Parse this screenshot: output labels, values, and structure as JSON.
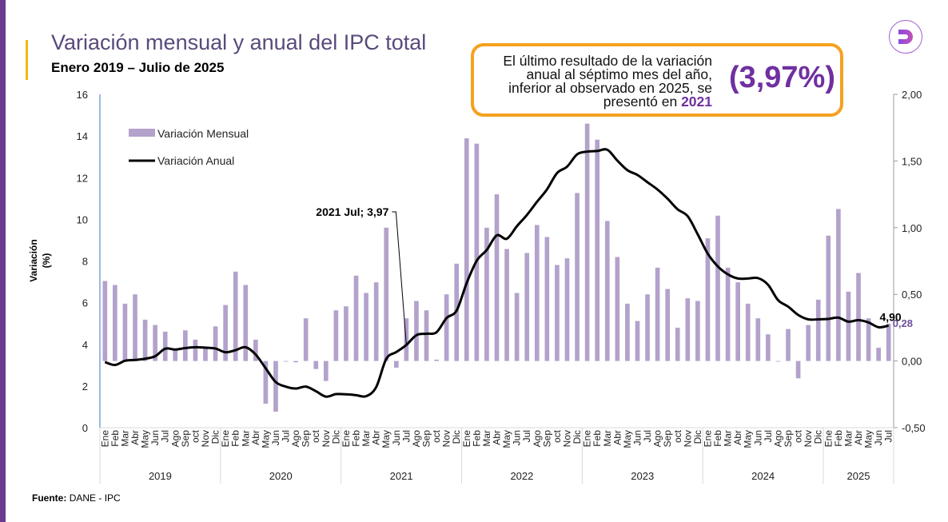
{
  "header": {
    "title": "Variación mensual y anual del IPC total",
    "subtitle": "Enero 2019 – Julio de 2025"
  },
  "logo": {
    "icon": "dane-d-logo-icon",
    "letter": "D",
    "color": "#9b4fd6"
  },
  "callout": {
    "line1": "El último resultado de la variación",
    "line2": "anual al séptimo mes del año,",
    "line3": "inferior al observado en 2025, se",
    "line4_prefix": "presentó en ",
    "line4_highlight": "2021",
    "big_value": "(3,97%)",
    "border_color": "#f5a11f",
    "accent_color": "#7030a0"
  },
  "footer": {
    "label": "Fuente:",
    "value": "DANE - IPC"
  },
  "chart_data": {
    "type": "bar+line",
    "title": "Variación mensual y anual del IPC total",
    "subtitle": "Enero 2019 – Julio de 2025",
    "ylabel": "Variación (%)",
    "ylabel_line1": "Variación",
    "ylabel_line2": "(%)",
    "y_left": {
      "range": [
        0,
        16
      ],
      "ticks": [
        "0",
        "2",
        "4",
        "6",
        "8",
        "10",
        "12",
        "14",
        "16"
      ],
      "series": "Variación Anual"
    },
    "y_right": {
      "range": [
        -0.5,
        2.0
      ],
      "ticks": [
        "-0,50",
        "0,00",
        "0,50",
        "1,00",
        "1,50",
        "2,00"
      ],
      "series": "Variación Mensual"
    },
    "grid": false,
    "legend": {
      "position": "top-left",
      "entries": [
        {
          "name": "Variación Mensual",
          "type": "bar",
          "color": "#b3a2cb"
        },
        {
          "name": "Variación Anual",
          "type": "line",
          "color": "#000000"
        }
      ]
    },
    "years": [
      "2019",
      "2020",
      "2021",
      "2022",
      "2023",
      "2024",
      "2025"
    ],
    "months_per_year": [
      12,
      12,
      12,
      12,
      12,
      12,
      7
    ],
    "month_labels": [
      "Ene",
      "Feb",
      "Mar",
      "Abr",
      "May",
      "Jun",
      "Jul",
      "Ago",
      "Sep",
      "oct",
      "Nov",
      "Dic"
    ],
    "series": [
      {
        "name": "Variación Mensual",
        "axis": "right",
        "type": "bar",
        "color": "#b3a2cb",
        "values": [
          0.6,
          0.57,
          0.43,
          0.5,
          0.31,
          0.27,
          0.22,
          0.09,
          0.23,
          0.16,
          0.1,
          0.26,
          0.42,
          0.67,
          0.57,
          0.16,
          -0.32,
          -0.38,
          0.0,
          -0.01,
          0.32,
          -0.06,
          -0.15,
          0.38,
          0.41,
          0.64,
          0.51,
          0.59,
          1.0,
          -0.05,
          0.32,
          0.45,
          0.38,
          0.01,
          0.5,
          0.73,
          1.67,
          1.63,
          1.0,
          1.25,
          0.84,
          0.51,
          0.81,
          1.02,
          0.93,
          0.72,
          0.77,
          1.26,
          1.78,
          1.66,
          1.05,
          0.78,
          0.43,
          0.3,
          0.5,
          0.7,
          0.54,
          0.25,
          0.47,
          0.45,
          0.92,
          1.09,
          0.7,
          0.59,
          0.43,
          0.32,
          0.2,
          0.0,
          0.24,
          -0.13,
          0.27,
          0.46,
          0.94,
          1.14,
          0.52,
          0.66,
          0.32,
          0.1,
          0.28
        ]
      },
      {
        "name": "Variación Anual",
        "axis": "left",
        "type": "line",
        "color": "#000000",
        "values": [
          3.15,
          3.01,
          3.21,
          3.25,
          3.31,
          3.43,
          3.79,
          3.75,
          3.82,
          3.86,
          3.84,
          3.8,
          3.62,
          3.72,
          3.86,
          3.51,
          2.85,
          2.19,
          1.97,
          1.88,
          1.97,
          1.75,
          1.49,
          1.61,
          1.6,
          1.56,
          1.51,
          1.95,
          3.3,
          3.63,
          3.97,
          4.44,
          4.51,
          4.58,
          5.26,
          5.62,
          6.94,
          8.01,
          8.53,
          9.23,
          9.07,
          9.67,
          10.21,
          10.84,
          11.44,
          12.22,
          12.53,
          13.12,
          13.25,
          13.28,
          13.34,
          12.82,
          12.36,
          12.13,
          11.78,
          11.43,
          10.99,
          10.48,
          10.15,
          9.28,
          8.35,
          7.74,
          7.36,
          7.16,
          7.16,
          7.18,
          6.86,
          6.12,
          5.81,
          5.41,
          5.2,
          5.2,
          5.22,
          5.28,
          5.09,
          5.16,
          5.05,
          4.82,
          4.9
        ]
      }
    ],
    "annotations": [
      {
        "text": "2021 Jul; 3,97",
        "index": 30,
        "series": "Variación Anual"
      },
      {
        "text": "4,90",
        "index": 78,
        "series": "Variación Anual"
      },
      {
        "text": "0,28",
        "index": 78,
        "series": "Variación Mensual",
        "color": "#6b4f9a"
      }
    ]
  }
}
